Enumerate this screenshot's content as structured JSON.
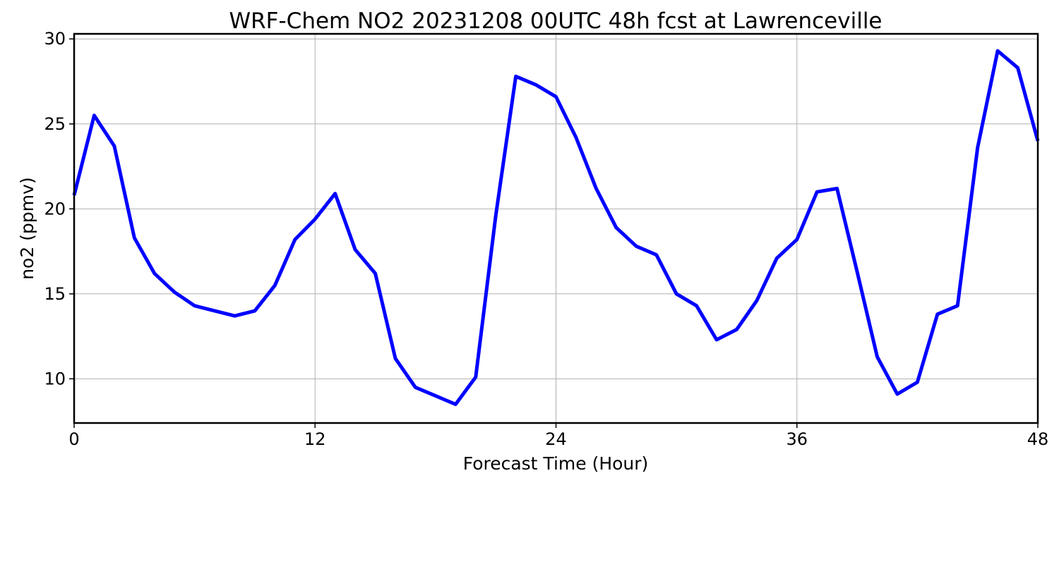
{
  "chart_data": {
    "type": "line",
    "title": "WRF-Chem NO2  20231208 00UTC 48h fcst at Lawrenceville",
    "xlabel": "Forecast Time (Hour)",
    "ylabel": "no2  (ppmv)",
    "xlim": [
      0,
      48
    ],
    "ylim": [
      7.4,
      30.3
    ],
    "xticks": [
      0,
      12,
      24,
      36,
      48
    ],
    "yticks": [
      10,
      15,
      20,
      25,
      30
    ],
    "grid": true,
    "series": [
      {
        "color": "#0000ff",
        "x": [
          0,
          1,
          2,
          3,
          4,
          5,
          6,
          7,
          8,
          9,
          10,
          11,
          12,
          13,
          14,
          15,
          16,
          17,
          18,
          19,
          20,
          21,
          22,
          23,
          24,
          25,
          26,
          27,
          28,
          29,
          30,
          31,
          32,
          33,
          34,
          35,
          36,
          37,
          38,
          39,
          40,
          41,
          42,
          43,
          44,
          45,
          46,
          47,
          48
        ],
        "y": [
          20.8,
          25.5,
          23.7,
          18.3,
          16.2,
          15.1,
          14.3,
          14.0,
          13.7,
          14.0,
          15.5,
          18.2,
          19.4,
          20.9,
          17.6,
          16.2,
          11.2,
          9.5,
          9.0,
          8.5,
          10.1,
          19.6,
          27.8,
          27.3,
          26.6,
          24.2,
          21.2,
          18.9,
          17.8,
          17.3,
          15.0,
          14.3,
          12.3,
          12.9,
          14.6,
          17.1,
          18.2,
          21.0,
          21.2,
          16.3,
          11.3,
          9.1,
          9.8,
          13.8,
          14.3,
          23.6,
          29.3,
          28.3,
          24.0
        ]
      }
    ]
  }
}
